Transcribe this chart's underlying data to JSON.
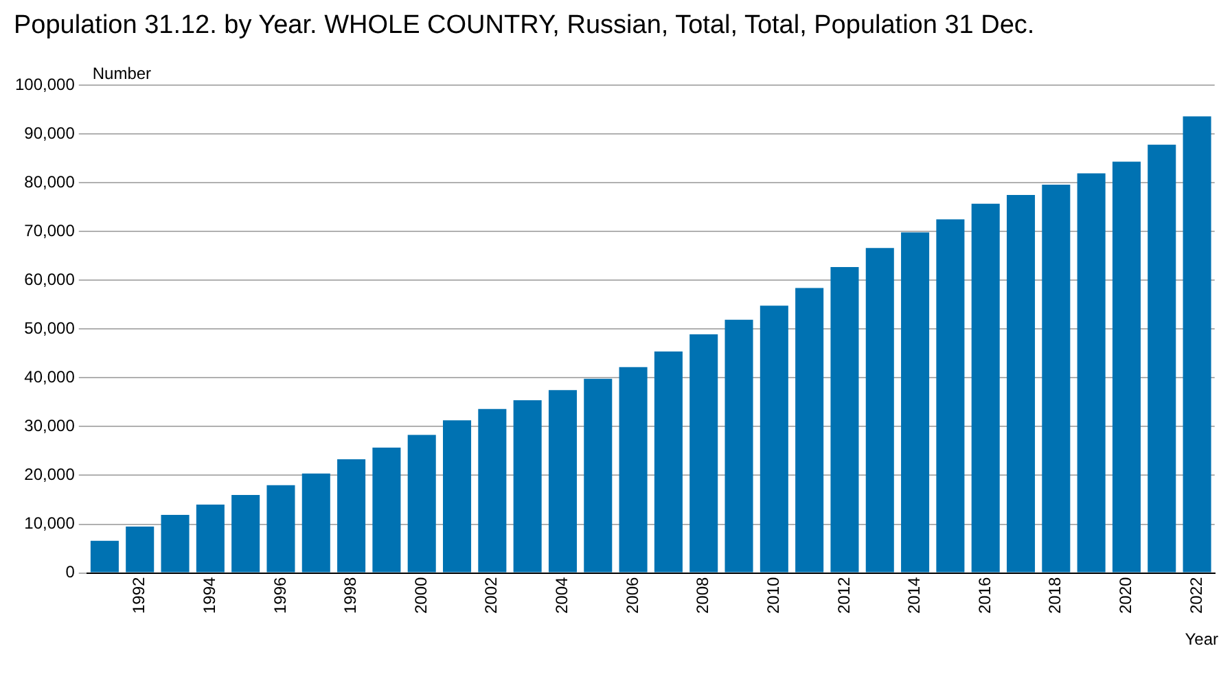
{
  "chart_data": {
    "type": "bar",
    "title": "Population 31.12. by Year. WHOLE COUNTRY, Russian, Total, Total, Population 31 Dec.",
    "ylabel": "Number",
    "xlabel": "Year",
    "categories": [
      null,
      "1992",
      null,
      "1994",
      null,
      "1996",
      null,
      "1998",
      null,
      "2000",
      null,
      "2002",
      null,
      "2004",
      null,
      "2006",
      null,
      "2008",
      null,
      "2010",
      null,
      "2012",
      null,
      "2014",
      null,
      "2016",
      null,
      "2018",
      null,
      "2020",
      null,
      "2022"
    ],
    "values": [
      6600,
      9500,
      11900,
      14000,
      16000,
      18000,
      20400,
      23300,
      25700,
      28300,
      31300,
      33600,
      35400,
      37500,
      39800,
      42200,
      45400,
      48900,
      51900,
      54800,
      58400,
      62700,
      66600,
      69800,
      72500,
      75700,
      77500,
      79600,
      81900,
      84300,
      87800,
      93600
    ],
    "color": "#0072b2",
    "ylim": [
      0,
      100000
    ],
    "yticks": [
      0,
      {
        "value": 10000,
        "label": "10,000"
      },
      {
        "value": 20000,
        "label": "20,000"
      },
      {
        "value": 30000,
        "label": "30,000"
      },
      {
        "value": 40000,
        "label": "40,000"
      },
      {
        "value": 50000,
        "label": "50,000"
      },
      {
        "value": 60000,
        "label": "60,000"
      },
      {
        "value": 70000,
        "label": "70,000"
      },
      {
        "value": 80000,
        "label": "80,000"
      },
      {
        "value": 90000,
        "label": "90,000"
      },
      {
        "value": 100000,
        "label": "100,000"
      }
    ],
    "grid": "y",
    "legend": false
  }
}
